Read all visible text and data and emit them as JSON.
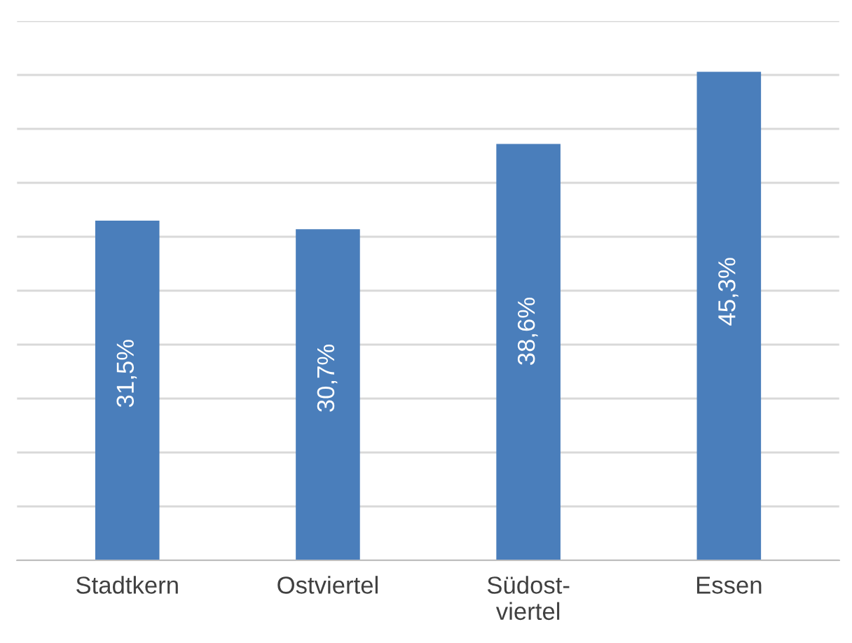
{
  "chart_data": {
    "type": "bar",
    "categories": [
      "Stadtkern",
      "Ostviertel",
      "Südost-\nviertel",
      "Essen"
    ],
    "values": [
      31.5,
      30.7,
      38.6,
      45.3
    ],
    "value_labels": [
      "31,5%",
      "30,7%",
      "38,6%",
      "45,3%"
    ],
    "color": "#4a7ebb",
    "ylim": [
      0,
      50
    ],
    "yticks": [
      {
        "value": 0,
        "label": null
      },
      {
        "value": 5,
        "label": null
      },
      {
        "value": 10,
        "label": null
      },
      {
        "value": 15,
        "label": null
      },
      {
        "value": 20,
        "label": null
      },
      {
        "value": 25,
        "label": null
      },
      {
        "value": 30,
        "label": null
      },
      {
        "value": 35,
        "label": null
      },
      {
        "value": 40,
        "label": null
      },
      {
        "value": 45,
        "label": null
      },
      {
        "value": 50,
        "label": null
      }
    ],
    "grid": "y"
  }
}
